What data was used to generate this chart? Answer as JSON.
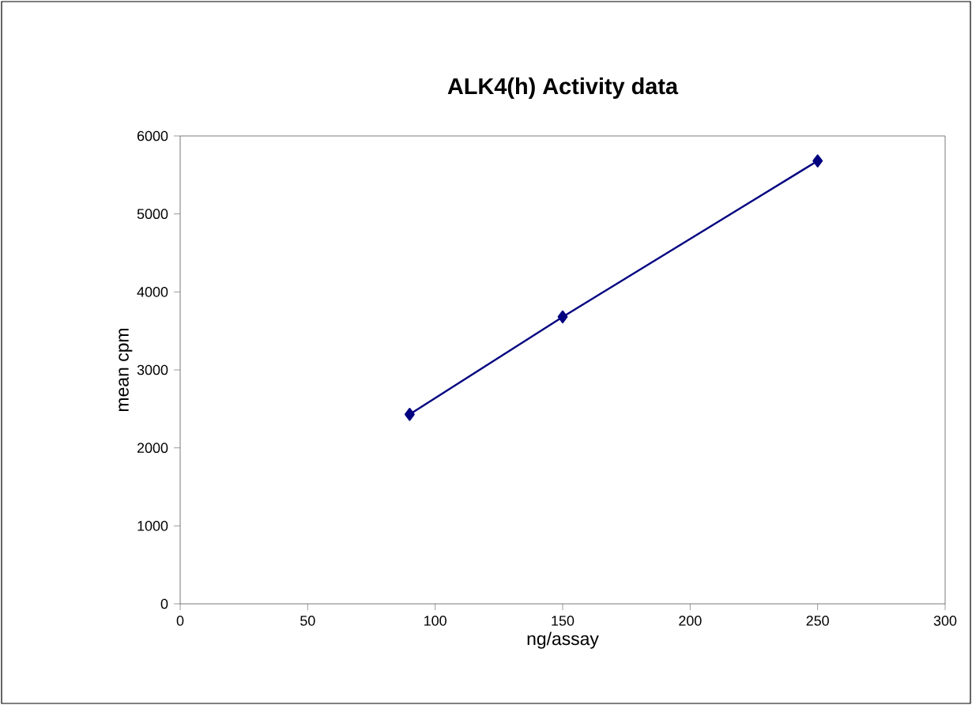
{
  "chart_data": {
    "type": "line",
    "title": "ALK4(h) Activity data",
    "xlabel": "ng/assay",
    "ylabel": "mean cpm",
    "x": [
      90,
      150,
      250
    ],
    "series": [
      {
        "color": "#000080",
        "values": [
          2430,
          3680,
          5680
        ]
      }
    ],
    "xlim": [
      0,
      300
    ],
    "xticks": [
      0,
      50,
      100,
      150,
      200,
      250,
      300
    ],
    "ylim": [
      0,
      6000
    ],
    "yticks": [
      0,
      1000,
      2000,
      3000,
      4000,
      5000,
      6000
    ],
    "marker": "diamond",
    "line_style": "solid",
    "grid": false
  }
}
